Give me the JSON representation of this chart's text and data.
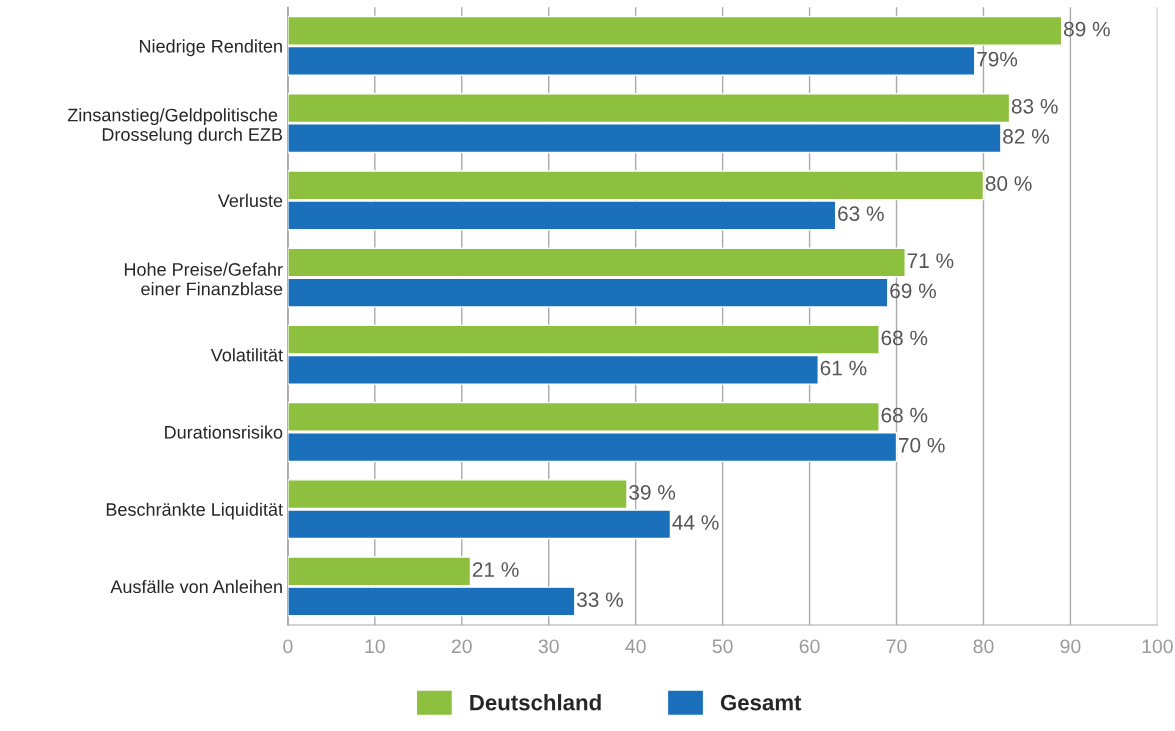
{
  "chart_data": {
    "type": "bar",
    "orientation": "horizontal",
    "categories": [
      "Niedrige Renditen",
      "Zinsanstieg/Geldpolitische \nDrosselung durch EZB",
      "Verluste",
      "Hohe Preise/Gefahr\neiner Finanzblase",
      "Volatilität",
      "Durationsrisiko",
      "Beschränkte Liquidität",
      "Ausfälle von Anleihen"
    ],
    "series": [
      {
        "name": "Deutschland",
        "color": "#8dc03f",
        "values": [
          89,
          83,
          80,
          71,
          68,
          68,
          39,
          21
        ],
        "value_labels": [
          "89 %",
          "83 %",
          "80 %",
          "71 %",
          "68 %",
          "68 %",
          "39 %",
          "21 %"
        ]
      },
      {
        "name": "Gesamt",
        "color": "#1a70ba",
        "values": [
          79,
          82,
          63,
          69,
          61,
          70,
          44,
          33
        ],
        "value_labels": [
          "79%",
          "82 %",
          "63 %",
          "69 %",
          "61 %",
          "70 %",
          "44 %",
          "33 %"
        ]
      }
    ],
    "xlim": [
      0,
      100
    ],
    "xticks": [
      0,
      10,
      20,
      30,
      40,
      50,
      60,
      70,
      80,
      90,
      100
    ],
    "grid": "x",
    "legend": "bottom"
  }
}
